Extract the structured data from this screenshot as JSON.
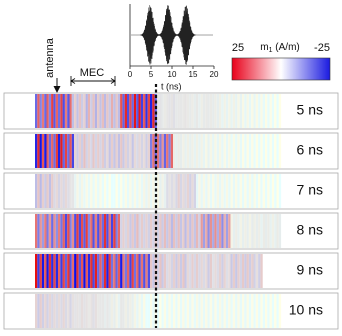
{
  "inset": {
    "x_ticks": [
      "0",
      "5",
      "10",
      "15",
      "20"
    ],
    "x_label": "t (ns)"
  },
  "colorbar": {
    "max_label": "25",
    "title": "m",
    "title_sub": "1",
    "title_unit": " (A/m)",
    "min_label": "-25"
  },
  "annotations": {
    "antenna": "antenna",
    "mec": "MEC"
  },
  "rows": [
    {
      "label": "5 ns"
    },
    {
      "label": "6 ns"
    },
    {
      "label": "7 ns"
    },
    {
      "label": "8 ns"
    },
    {
      "label": "9 ns"
    },
    {
      "label": "10 ns"
    }
  ]
}
